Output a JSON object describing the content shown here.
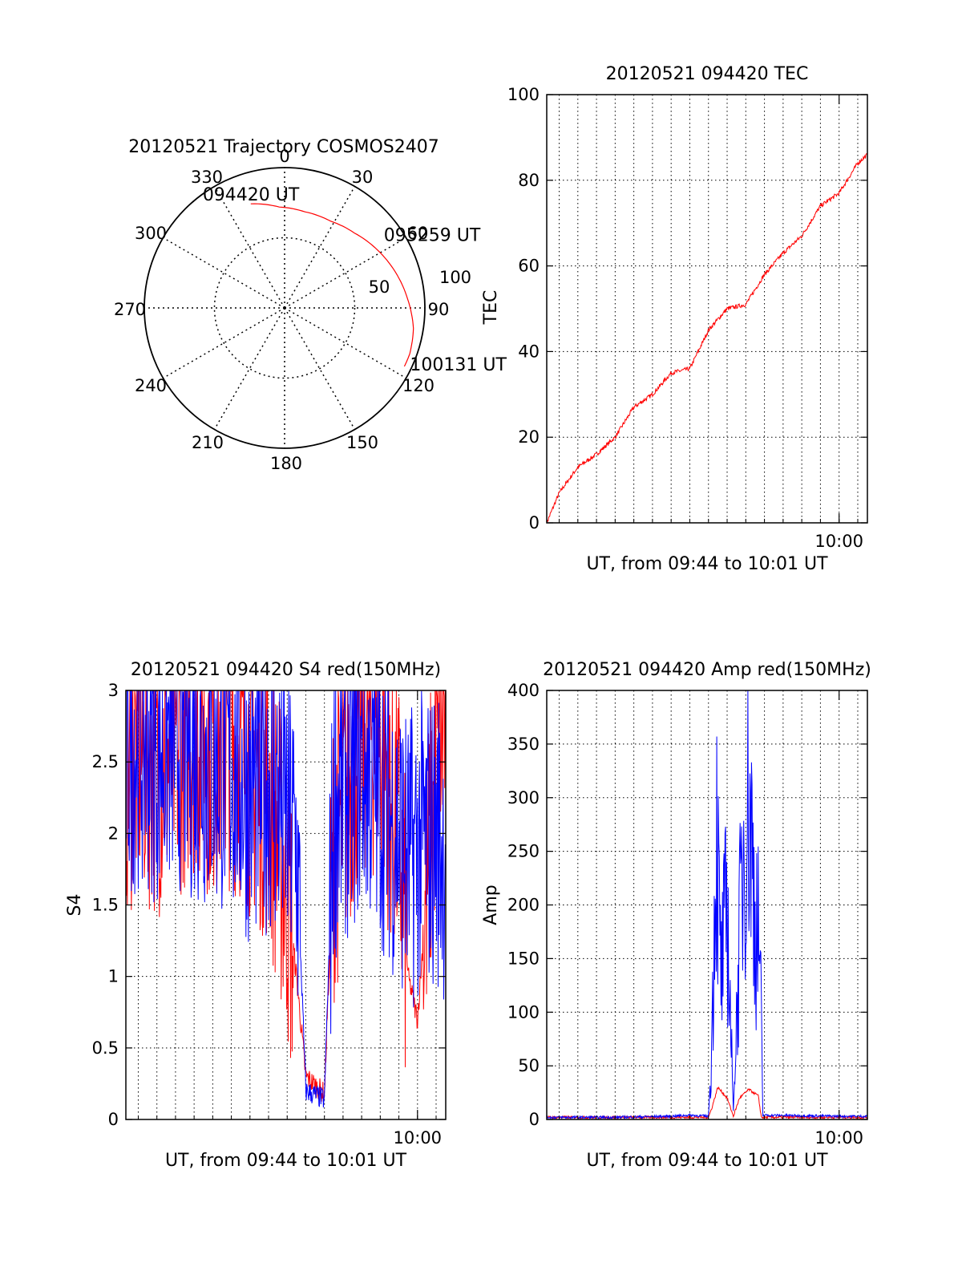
{
  "figure": {
    "background": "#ffffff",
    "series_colors": {
      "red": "#ff0000",
      "blue": "#0000ff"
    }
  },
  "chart_data": [
    {
      "id": "trajectory",
      "type": "polar",
      "title": "20120521 Trajectory COSMOS2407",
      "azimuth_labels": [
        "0",
        "30",
        "60",
        "90",
        "120",
        "150",
        "180",
        "210",
        "240",
        "270",
        "300",
        "330"
      ],
      "radial_ring_labels": [
        "50",
        "100"
      ],
      "rlim": [
        0,
        100
      ],
      "grid": "dotted",
      "track": {
        "color": "#ff0000",
        "points": [
          {
            "az": 342,
            "r": 78
          },
          {
            "az": 357,
            "r": 72
          },
          {
            "az": 12,
            "r": 70
          },
          {
            "az": 28,
            "r": 70
          },
          {
            "az": 43,
            "r": 73
          },
          {
            "az": 58,
            "r": 78
          },
          {
            "az": 72,
            "r": 83
          },
          {
            "az": 86,
            "r": 88
          },
          {
            "az": 99,
            "r": 93
          },
          {
            "az": 110,
            "r": 95
          },
          {
            "az": 116,
            "r": 95
          }
        ]
      },
      "annotations": [
        {
          "text": "094420 UT",
          "az": 342,
          "r": 78
        },
        {
          "text": "095259 UT",
          "az": 58,
          "r": 78
        },
        {
          "text": "100131 UT",
          "az": 116,
          "r": 95
        }
      ]
    },
    {
      "id": "tec",
      "type": "line",
      "title": "20120521 094420 TEC",
      "xlabel": "UT, from 09:44 to 10:01 UT",
      "ylabel": "TEC",
      "xlim": [
        "09:44:20",
        "10:01:31"
      ],
      "ylim": [
        0,
        100
      ],
      "yticks": [
        0,
        20,
        40,
        60,
        80,
        100
      ],
      "xtick_label": "10:00",
      "xtick_label_time": "10:00",
      "grid": true,
      "series": [
        {
          "color": "#ff0000",
          "x": [
            "09:44:20",
            "09:45:00",
            "09:46:00",
            "09:47:00",
            "09:48:00",
            "09:49:00",
            "09:50:00",
            "09:51:00",
            "09:52:00",
            "09:53:00",
            "09:54:00",
            "09:55:00",
            "09:56:00",
            "09:57:00",
            "09:58:00",
            "09:59:00",
            "10:00:00",
            "10:01:00",
            "10:01:31"
          ],
          "values": [
            0,
            7,
            13,
            16,
            20,
            27,
            30,
            35,
            36,
            45,
            50,
            51,
            58,
            63,
            67,
            74,
            77,
            84,
            86
          ]
        }
      ]
    },
    {
      "id": "s4",
      "type": "line",
      "title": "20120521 094420 S4 red(150MHz)",
      "xlabel": "UT, from 09:44 to 10:01 UT",
      "ylabel": "S4",
      "xlim": [
        "09:44:20",
        "10:01:31"
      ],
      "ylim": [
        0,
        3
      ],
      "yticks": [
        0,
        0.5,
        1,
        1.5,
        2,
        2.5,
        3
      ],
      "xtick_label": "10:00",
      "xtick_label_time": "10:00",
      "grid": true,
      "series": [
        {
          "color": "#ff0000",
          "x": [
            "09:44:20",
            "09:45:00",
            "09:46:00",
            "09:47:00",
            "09:48:00",
            "09:49:00",
            "09:50:00",
            "09:51:00",
            "09:52:00",
            "09:53:00",
            "09:53:30",
            "09:54:00",
            "09:55:00",
            "09:55:30",
            "09:56:00",
            "09:57:00",
            "09:58:00",
            "09:59:00",
            "09:59:30",
            "10:00:00",
            "10:01:00",
            "10:01:31"
          ],
          "values": [
            2.5,
            2.6,
            2.5,
            2.6,
            2.8,
            2.6,
            2.7,
            2.5,
            2.3,
            1.6,
            1.0,
            0.3,
            0.18,
            1.9,
            2.2,
            2.8,
            2.7,
            2.0,
            1.0,
            0.7,
            2.5,
            2.8
          ]
        },
        {
          "color": "#0000ff",
          "x": [
            "09:44:20",
            "09:45:00",
            "09:46:00",
            "09:47:00",
            "09:48:00",
            "09:49:00",
            "09:50:00",
            "09:51:00",
            "09:52:00",
            "09:53:00",
            "09:53:30",
            "09:54:00",
            "09:55:00",
            "09:55:30",
            "09:56:00",
            "09:57:00",
            "09:58:00",
            "09:59:00",
            "09:59:30",
            "10:00:00",
            "10:01:00",
            "10:01:31"
          ],
          "values": [
            2.6,
            2.7,
            2.6,
            2.7,
            2.6,
            2.5,
            2.5,
            2.3,
            2.4,
            2.1,
            1.9,
            0.2,
            0.14,
            2.2,
            2.3,
            2.5,
            2.3,
            2.0,
            1.8,
            1.9,
            2.0,
            1.9
          ]
        }
      ]
    },
    {
      "id": "amp",
      "type": "line",
      "title": "20120521 094420 Amp red(150MHz)",
      "xlabel": "UT, from 09:44 to 10:01 UT",
      "ylabel": "Amp",
      "xlim": [
        "09:44:20",
        "10:01:31"
      ],
      "ylim": [
        0,
        400
      ],
      "yticks": [
        0,
        50,
        100,
        150,
        200,
        250,
        300,
        350,
        400
      ],
      "xtick_label": "10:00",
      "xtick_label_time": "10:00",
      "grid": true,
      "series": [
        {
          "color": "#ff0000",
          "x": [
            "09:44:20",
            "09:50:00",
            "09:53:00",
            "09:53:10",
            "09:53:30",
            "09:54:00",
            "09:54:20",
            "09:54:40",
            "09:55:10",
            "09:55:40",
            "09:55:50",
            "10:00:00",
            "10:01:31"
          ],
          "values": [
            2,
            2,
            2,
            10,
            30,
            20,
            3,
            20,
            28,
            22,
            2,
            2,
            2
          ]
        },
        {
          "color": "#0000ff",
          "x": [
            "09:44:20",
            "09:48:00",
            "09:51:00",
            "09:52:00",
            "09:53:00",
            "09:53:10",
            "09:53:25",
            "09:53:40",
            "09:54:00",
            "09:54:20",
            "09:54:40",
            "09:54:55",
            "09:55:10",
            "09:55:30",
            "09:55:45",
            "09:55:55",
            "10:00:00",
            "10:01:31"
          ],
          "values": [
            2,
            2,
            3,
            4,
            3,
            60,
            280,
            130,
            200,
            8,
            170,
            270,
            305,
            190,
            160,
            4,
            3,
            3
          ]
        }
      ]
    }
  ]
}
